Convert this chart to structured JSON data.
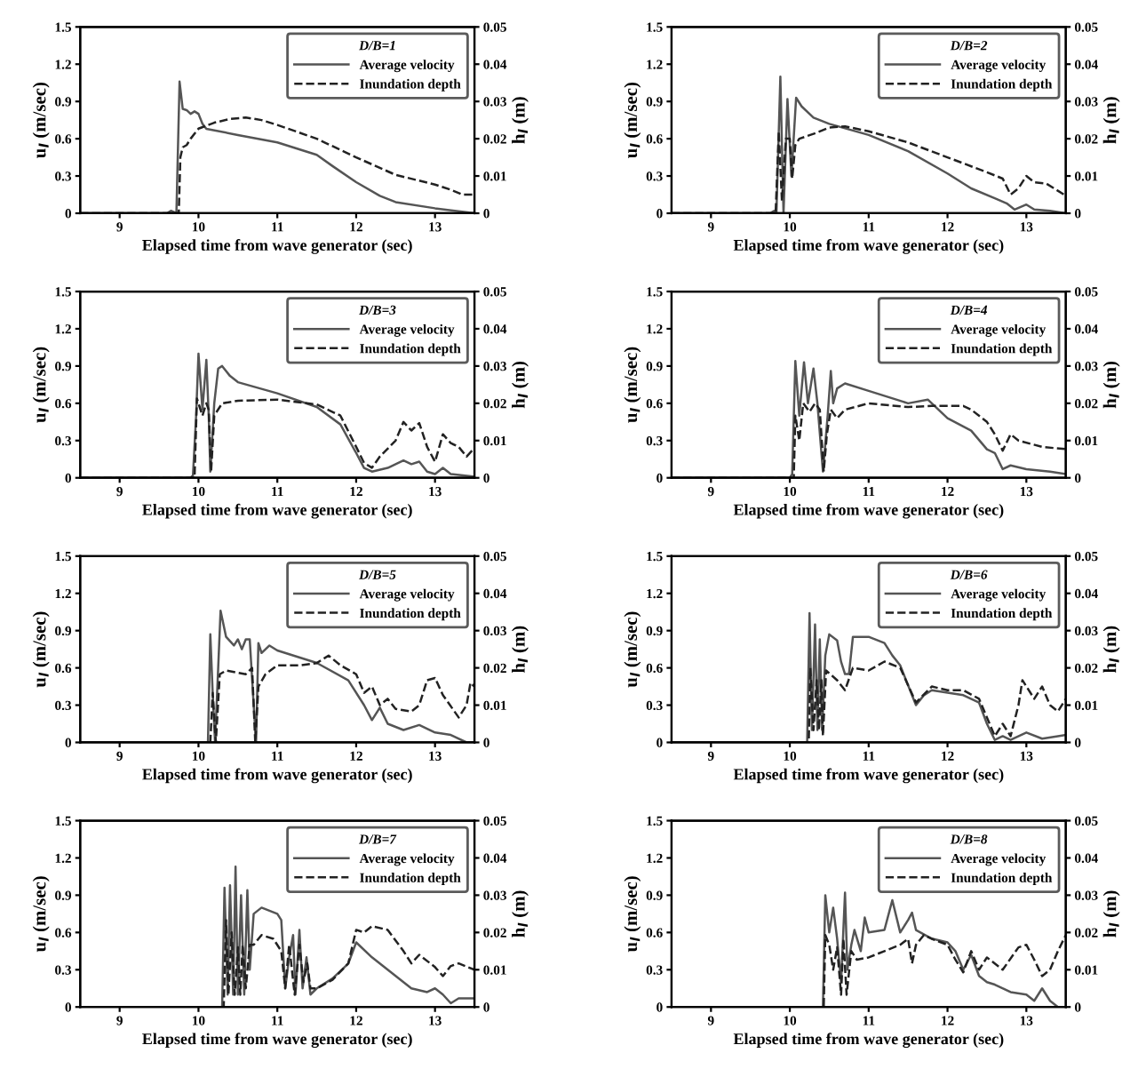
{
  "chart_data": [
    {
      "type": "line",
      "legend_title": "D/B=1",
      "xlabel": "Elapsed time from wave generator (sec)",
      "ylabel": "u$_{l}$ (m/sec)",
      "y2label": "h$_{l}$ (m)",
      "xlim": [
        8.5,
        13.5
      ],
      "xticks": [
        9,
        10,
        11,
        12,
        13
      ],
      "ylim": [
        0,
        1.5
      ],
      "yticks": [
        0,
        0.3,
        0.6,
        0.9,
        1.2,
        1.5
      ],
      "y2lim": [
        0,
        0.05
      ],
      "y2ticks": [
        0,
        0.01,
        0.02,
        0.03,
        0.04,
        0.05
      ],
      "legend": "top right",
      "grid": false,
      "series": [
        {
          "name": "Average velocity",
          "color": "#555555",
          "line_style": "solid",
          "x": [
            8.5,
            9.6,
            9.65,
            9.72,
            9.76,
            9.8,
            9.85,
            9.9,
            9.95,
            10.0,
            10.05,
            10.1,
            10.5,
            11.0,
            11.5,
            11.7,
            12.0,
            12.3,
            12.5,
            13.0,
            13.5
          ],
          "values": [
            0,
            0,
            0.02,
            0,
            1.06,
            0.84,
            0.83,
            0.8,
            0.82,
            0.8,
            0.72,
            0.68,
            0.63,
            0.57,
            0.47,
            0.38,
            0.25,
            0.14,
            0.09,
            0.04,
            0
          ]
        },
        {
          "name": "Inundation depth",
          "color": "#222222",
          "line_style": "dashed",
          "axis": "y2",
          "x": [
            8.5,
            9.75,
            9.77,
            9.8,
            9.85,
            9.9,
            10.0,
            10.2,
            10.4,
            10.6,
            10.8,
            11.0,
            11.5,
            12.0,
            12.5,
            13.0,
            13.2,
            13.35,
            13.5
          ],
          "values": [
            0,
            0,
            0.015,
            0.0177,
            0.0183,
            0.02,
            0.0227,
            0.0243,
            0.0253,
            0.0257,
            0.025,
            0.0237,
            0.02,
            0.015,
            0.0103,
            0.0077,
            0.0063,
            0.005,
            0.005
          ]
        }
      ]
    },
    {
      "type": "line",
      "legend_title": "D/B=2",
      "xlabel": "Elapsed time from wave generator (sec)",
      "ylabel": "u$_{l}$ (m/sec)",
      "y2label": "h$_{l}$ (m)",
      "xlim": [
        8.5,
        13.5
      ],
      "xticks": [
        9,
        10,
        11,
        12,
        13
      ],
      "ylim": [
        0,
        1.5
      ],
      "yticks": [
        0,
        0.3,
        0.6,
        0.9,
        1.2,
        1.5
      ],
      "y2lim": [
        0,
        0.05
      ],
      "y2ticks": [
        0,
        0.01,
        0.02,
        0.03,
        0.04,
        0.05
      ],
      "legend": "top right",
      "grid": false,
      "series": [
        {
          "name": "Average velocity",
          "color": "#555555",
          "line_style": "solid",
          "x": [
            8.5,
            9.75,
            9.8,
            9.83,
            9.88,
            9.92,
            9.97,
            10.02,
            10.08,
            10.15,
            10.3,
            10.5,
            11.0,
            11.5,
            12.0,
            12.3,
            12.6,
            12.75,
            12.85,
            13.0,
            13.1,
            13.3,
            13.5
          ],
          "values": [
            0,
            0,
            0.02,
            0,
            1.1,
            0,
            0.92,
            0.3,
            0.93,
            0.86,
            0.77,
            0.72,
            0.63,
            0.5,
            0.32,
            0.2,
            0.12,
            0.08,
            0.03,
            0.07,
            0.03,
            0.02,
            0
          ]
        },
        {
          "name": "Inundation depth",
          "color": "#222222",
          "line_style": "dashed",
          "axis": "y2",
          "x": [
            8.5,
            9.82,
            9.86,
            9.9,
            9.95,
            10.0,
            10.03,
            10.07,
            10.12,
            10.3,
            10.5,
            10.7,
            11.0,
            11.5,
            12.0,
            12.5,
            12.7,
            12.8,
            12.9,
            13.0,
            13.1,
            13.25,
            13.35,
            13.5
          ],
          "values": [
            0,
            0,
            0.022,
            0.0033,
            0.02,
            0.02,
            0.0093,
            0.0183,
            0.02,
            0.0213,
            0.023,
            0.0233,
            0.022,
            0.019,
            0.015,
            0.011,
            0.0093,
            0.005,
            0.0067,
            0.01,
            0.0083,
            0.008,
            0.0067,
            0.0047
          ]
        }
      ]
    },
    {
      "type": "line",
      "legend_title": "D/B=3",
      "xlabel": "Elapsed time from wave generator (sec)",
      "ylabel": "u$_{l}$ (m/sec)",
      "y2label": "h$_{l}$ (m)",
      "xlim": [
        8.5,
        13.5
      ],
      "xticks": [
        9,
        10,
        11,
        12,
        13
      ],
      "ylim": [
        0,
        1.5
      ],
      "yticks": [
        0,
        0.3,
        0.6,
        0.9,
        1.2,
        1.5
      ],
      "y2lim": [
        0,
        0.05
      ],
      "y2ticks": [
        0,
        0.01,
        0.02,
        0.03,
        0.04,
        0.05
      ],
      "legend": "top right",
      "grid": false,
      "series": [
        {
          "name": "Average velocity",
          "color": "#555555",
          "line_style": "solid",
          "x": [
            8.5,
            9.9,
            9.93,
            9.97,
            10.0,
            10.05,
            10.1,
            10.13,
            10.15,
            10.2,
            10.25,
            10.3,
            10.4,
            10.5,
            11.0,
            11.5,
            11.8,
            12.0,
            12.1,
            12.2,
            12.4,
            12.6,
            12.7,
            12.8,
            12.9,
            13.0,
            13.1,
            13.2,
            13.5
          ],
          "values": [
            0,
            0,
            0.02,
            0.5,
            1.0,
            0.55,
            0.95,
            0.5,
            0.05,
            0.6,
            0.88,
            0.9,
            0.82,
            0.77,
            0.68,
            0.57,
            0.43,
            0.2,
            0.08,
            0.05,
            0.08,
            0.14,
            0.11,
            0.13,
            0.05,
            0.03,
            0.08,
            0.03,
            0.01
          ]
        },
        {
          "name": "Inundation depth",
          "color": "#222222",
          "line_style": "dashed",
          "axis": "y2",
          "x": [
            8.5,
            9.95,
            9.98,
            10.05,
            10.1,
            10.13,
            10.16,
            10.2,
            10.3,
            10.5,
            11.0,
            11.5,
            11.8,
            12.0,
            12.1,
            12.2,
            12.3,
            12.5,
            12.6,
            12.7,
            12.8,
            12.9,
            13.0,
            13.1,
            13.2,
            13.3,
            13.4,
            13.5
          ],
          "values": [
            0,
            0,
            0.0213,
            0.0167,
            0.02,
            0.0183,
            0.0017,
            0.0167,
            0.02,
            0.0207,
            0.021,
            0.0197,
            0.0167,
            0.0083,
            0.004,
            0.0027,
            0.0057,
            0.01,
            0.015,
            0.0127,
            0.0147,
            0.0083,
            0.0043,
            0.0117,
            0.0093,
            0.0083,
            0.0057,
            0.008
          ]
        }
      ]
    },
    {
      "type": "line",
      "legend_title": "D/B=4",
      "xlabel": "Elapsed time from wave generator (sec)",
      "ylabel": "u$_{l}$ (m/sec)",
      "y2label": "h$_{l}$ (m)",
      "xlim": [
        8.5,
        13.5
      ],
      "xticks": [
        9,
        10,
        11,
        12,
        13
      ],
      "ylim": [
        0,
        1.5
      ],
      "yticks": [
        0,
        0.3,
        0.6,
        0.9,
        1.2,
        1.5
      ],
      "y2lim": [
        0,
        0.05
      ],
      "y2ticks": [
        0,
        0.01,
        0.02,
        0.03,
        0.04,
        0.05
      ],
      "legend": "top right",
      "grid": false,
      "series": [
        {
          "name": "Average velocity",
          "color": "#555555",
          "line_style": "solid",
          "x": [
            8.5,
            10.0,
            10.03,
            10.07,
            10.12,
            10.18,
            10.23,
            10.3,
            10.35,
            10.42,
            10.48,
            10.52,
            10.55,
            10.6,
            10.7,
            11.0,
            11.5,
            11.75,
            12.0,
            12.3,
            12.5,
            12.6,
            12.7,
            12.8,
            13.0,
            13.3,
            13.5
          ],
          "values": [
            0,
            0,
            0.03,
            0.94,
            0.5,
            0.93,
            0.6,
            0.88,
            0.6,
            0.05,
            0.5,
            0.86,
            0.6,
            0.72,
            0.76,
            0.7,
            0.6,
            0.63,
            0.48,
            0.38,
            0.23,
            0.2,
            0.07,
            0.1,
            0.07,
            0.05,
            0.03
          ]
        },
        {
          "name": "Inundation depth",
          "color": "#222222",
          "line_style": "dashed",
          "axis": "y2",
          "x": [
            8.5,
            10.05,
            10.07,
            10.12,
            10.17,
            10.25,
            10.32,
            10.38,
            10.43,
            10.47,
            10.52,
            10.6,
            10.7,
            11.0,
            11.5,
            11.8,
            12.2,
            12.3,
            12.5,
            12.6,
            12.7,
            12.8,
            12.9,
            13.2,
            13.5
          ],
          "values": [
            0,
            0,
            0.0167,
            0.01,
            0.02,
            0.0177,
            0.02,
            0.0183,
            0.0017,
            0.0117,
            0.0183,
            0.016,
            0.0183,
            0.02,
            0.019,
            0.0193,
            0.0193,
            0.0183,
            0.015,
            0.0117,
            0.0073,
            0.0117,
            0.01,
            0.0083,
            0.0077
          ]
        }
      ]
    },
    {
      "type": "line",
      "legend_title": "D/B=5",
      "xlabel": "Elapsed time from wave generator (sec)",
      "ylabel": "u$_{l}$ (m/sec)",
      "y2label": "h$_{l}$ (m)",
      "xlim": [
        8.5,
        13.5
      ],
      "xticks": [
        9,
        10,
        11,
        12,
        13
      ],
      "ylim": [
        0,
        1.5
      ],
      "yticks": [
        0,
        0.3,
        0.6,
        0.9,
        1.2,
        1.5
      ],
      "y2lim": [
        0,
        0.05
      ],
      "y2ticks": [
        0,
        0.01,
        0.02,
        0.03,
        0.04,
        0.05
      ],
      "legend": "top right",
      "grid": false,
      "series": [
        {
          "name": "Average velocity",
          "color": "#555555",
          "line_style": "solid",
          "x": [
            8.5,
            10.12,
            10.15,
            10.18,
            10.21,
            10.25,
            10.28,
            10.35,
            10.45,
            10.5,
            10.55,
            10.6,
            10.65,
            10.7,
            10.73,
            10.76,
            10.8,
            10.9,
            11.0,
            11.5,
            11.9,
            12.1,
            12.2,
            12.3,
            12.4,
            12.6,
            12.8,
            13.0,
            13.2,
            13.4,
            13.5
          ],
          "values": [
            0,
            0,
            0.87,
            0.4,
            0,
            0.6,
            1.06,
            0.85,
            0.78,
            0.83,
            0.75,
            0.83,
            0.83,
            0.3,
            0,
            0.8,
            0.72,
            0.78,
            0.74,
            0.64,
            0.5,
            0.3,
            0.18,
            0.28,
            0.15,
            0.1,
            0.14,
            0.08,
            0.06,
            0,
            0
          ]
        },
        {
          "name": "Inundation depth",
          "color": "#222222",
          "line_style": "dashed",
          "axis": "y2",
          "x": [
            8.5,
            10.15,
            10.18,
            10.22,
            10.27,
            10.35,
            10.5,
            10.6,
            10.68,
            10.72,
            10.76,
            10.85,
            11.0,
            11.3,
            11.5,
            11.65,
            11.8,
            12.0,
            12.1,
            12.2,
            12.3,
            12.4,
            12.5,
            12.7,
            12.8,
            12.9,
            13.0,
            13.1,
            13.3,
            13.4,
            13.45,
            13.5
          ],
          "values": [
            0,
            0,
            0.0133,
            0,
            0.0183,
            0.0193,
            0.0187,
            0.0183,
            0.02,
            0,
            0.015,
            0.0183,
            0.0207,
            0.0207,
            0.0213,
            0.0233,
            0.0207,
            0.0183,
            0.0133,
            0.015,
            0.01,
            0.0117,
            0.009,
            0.0083,
            0.01,
            0.0167,
            0.0173,
            0.0127,
            0.0067,
            0.01,
            0.016,
            0.015
          ]
        }
      ]
    },
    {
      "type": "line",
      "legend_title": "D/B=6",
      "xlabel": "Elapsed time from wave generator (sec)",
      "ylabel": "u$_{l}$ (m/sec)",
      "y2label": "h$_{l}$ (m)",
      "xlim": [
        8.5,
        13.5
      ],
      "xticks": [
        9,
        10,
        11,
        12,
        13
      ],
      "ylim": [
        0,
        1.5
      ],
      "yticks": [
        0,
        0.3,
        0.6,
        0.9,
        1.2,
        1.5
      ],
      "y2lim": [
        0,
        0.05
      ],
      "y2ticks": [
        0,
        0.01,
        0.02,
        0.03,
        0.04,
        0.05
      ],
      "legend": "top right",
      "grid": false,
      "series": [
        {
          "name": "Average velocity",
          "color": "#555555",
          "line_style": "solid",
          "x": [
            8.5,
            10.22,
            10.25,
            10.28,
            10.32,
            10.35,
            10.38,
            10.41,
            10.45,
            10.5,
            10.6,
            10.65,
            10.7,
            10.75,
            10.8,
            11.0,
            11.2,
            11.3,
            11.4,
            11.6,
            11.7,
            11.8,
            12.0,
            12.2,
            12.4,
            12.5,
            12.6,
            12.7,
            12.8,
            13.0,
            13.2,
            13.4,
            13.5
          ],
          "values": [
            0,
            0,
            1.04,
            0.1,
            0.95,
            0.1,
            0.83,
            0.1,
            0.7,
            0.87,
            0.82,
            0.65,
            0.55,
            0.55,
            0.85,
            0.85,
            0.8,
            0.7,
            0.62,
            0.3,
            0.38,
            0.42,
            0.4,
            0.38,
            0.32,
            0.15,
            0.02,
            0.05,
            0.02,
            0.08,
            0.03,
            0.05,
            0.06
          ]
        },
        {
          "name": "Inundation depth",
          "color": "#222222",
          "line_style": "dashed",
          "axis": "y2",
          "x": [
            8.5,
            10.24,
            10.26,
            10.3,
            10.34,
            10.37,
            10.4,
            10.42,
            10.46,
            10.6,
            10.7,
            10.8,
            11.0,
            11.2,
            11.4,
            11.6,
            11.8,
            12.0,
            12.2,
            12.4,
            12.5,
            12.6,
            12.7,
            12.8,
            12.9,
            12.95,
            13.1,
            13.2,
            13.3,
            13.4,
            13.5
          ],
          "values": [
            0,
            0,
            0.02,
            0.0033,
            0.0167,
            0.0033,
            0.0167,
            0.0017,
            0.0193,
            0.0167,
            0.014,
            0.02,
            0.0193,
            0.0217,
            0.02,
            0.0107,
            0.015,
            0.014,
            0.014,
            0.0117,
            0.0067,
            0.0017,
            0.005,
            0.0017,
            0.01,
            0.0167,
            0.0117,
            0.015,
            0.01,
            0.0083,
            0.0117
          ]
        }
      ]
    },
    {
      "type": "line",
      "legend_title": "D/B=7",
      "xlabel": "Elapsed time from wave generator (sec)",
      "ylabel": "u$_{l}$ (m/sec)",
      "y2label": "h$_{l}$ (m)",
      "xlim": [
        8.5,
        13.5
      ],
      "xticks": [
        9,
        10,
        11,
        12,
        13
      ],
      "ylim": [
        0,
        1.5
      ],
      "yticks": [
        0,
        0.3,
        0.6,
        0.9,
        1.2,
        1.5
      ],
      "y2lim": [
        0,
        0.05
      ],
      "y2ticks": [
        0,
        0.01,
        0.02,
        0.03,
        0.04,
        0.05
      ],
      "legend": "top right",
      "grid": false,
      "series": [
        {
          "name": "Average velocity",
          "color": "#555555",
          "line_style": "solid",
          "x": [
            8.5,
            10.3,
            10.33,
            10.37,
            10.4,
            10.44,
            10.47,
            10.5,
            10.54,
            10.58,
            10.62,
            10.65,
            10.7,
            10.8,
            11.0,
            11.05,
            11.1,
            11.15,
            11.2,
            11.23,
            11.28,
            11.32,
            11.37,
            11.42,
            11.5,
            11.7,
            11.9,
            12.0,
            12.2,
            12.5,
            12.7,
            12.9,
            13.0,
            13.1,
            13.2,
            13.3,
            13.5
          ],
          "values": [
            0,
            0,
            0.96,
            0.1,
            0.98,
            0.1,
            1.13,
            0.1,
            0.9,
            0.1,
            0.94,
            0.3,
            0.75,
            0.8,
            0.75,
            0.7,
            0.15,
            0.4,
            0.58,
            0.1,
            0.62,
            0.15,
            0.4,
            0.1,
            0.15,
            0.23,
            0.35,
            0.52,
            0.4,
            0.25,
            0.15,
            0.12,
            0.15,
            0.1,
            0.03,
            0.07,
            0.07
          ]
        },
        {
          "name": "Inundation depth",
          "color": "#222222",
          "line_style": "dashed",
          "axis": "y2",
          "x": [
            8.5,
            10.32,
            10.35,
            10.38,
            10.42,
            10.46,
            10.5,
            10.53,
            10.56,
            10.6,
            10.65,
            10.7,
            10.8,
            10.95,
            11.05,
            11.1,
            11.15,
            11.22,
            11.28,
            11.33,
            11.38,
            11.42,
            11.5,
            11.7,
            11.9,
            12.0,
            12.1,
            12.2,
            12.4,
            12.6,
            12.7,
            12.8,
            13.0,
            13.1,
            13.2,
            13.3,
            13.5
          ],
          "values": [
            0,
            0,
            0.0233,
            0.0033,
            0.02,
            0.0033,
            0.016,
            0.0033,
            0.0167,
            0.005,
            0.0167,
            0.0167,
            0.0193,
            0.0183,
            0.015,
            0.005,
            0.0167,
            0.0033,
            0.0167,
            0.0067,
            0.0117,
            0.005,
            0.005,
            0.0073,
            0.0117,
            0.0207,
            0.02,
            0.0217,
            0.0207,
            0.015,
            0.0117,
            0.014,
            0.0107,
            0.0083,
            0.011,
            0.0117,
            0.01
          ]
        }
      ]
    },
    {
      "type": "line",
      "legend_title": "D/B=8",
      "xlabel": "Elapsed time from wave generator (sec)",
      "ylabel": "u$_{l}$ (m/sec)",
      "y2label": "h$_{l}$ (m)",
      "xlim": [
        8.5,
        13.5
      ],
      "xticks": [
        9,
        10,
        11,
        12,
        13
      ],
      "ylim": [
        0,
        1.5
      ],
      "yticks": [
        0,
        0.3,
        0.6,
        0.9,
        1.2,
        1.5
      ],
      "y2lim": [
        0,
        0.05
      ],
      "y2ticks": [
        0,
        0.01,
        0.02,
        0.03,
        0.04,
        0.05
      ],
      "legend": "top right",
      "grid": false,
      "series": [
        {
          "name": "Average velocity",
          "color": "#555555",
          "line_style": "solid",
          "x": [
            8.5,
            10.42,
            10.45,
            10.5,
            10.55,
            10.6,
            10.65,
            10.7,
            10.73,
            10.78,
            10.82,
            10.9,
            10.95,
            11.0,
            11.2,
            11.3,
            11.4,
            11.5,
            11.55,
            11.6,
            11.8,
            12.0,
            12.1,
            12.2,
            12.3,
            12.4,
            12.5,
            12.6,
            12.8,
            13.0,
            13.1,
            13.2,
            13.3,
            13.4,
            13.5
          ],
          "values": [
            0,
            0,
            0.9,
            0.6,
            0.8,
            0.55,
            0.2,
            0.92,
            0.3,
            0.5,
            0.62,
            0.45,
            0.72,
            0.6,
            0.62,
            0.86,
            0.6,
            0.7,
            0.76,
            0.62,
            0.55,
            0.52,
            0.45,
            0.3,
            0.42,
            0.25,
            0.2,
            0.18,
            0.12,
            0.1,
            0.05,
            0.15,
            0.05,
            0,
            0
          ]
        },
        {
          "name": "Inundation depth",
          "color": "#222222",
          "line_style": "dashed",
          "axis": "y2",
          "x": [
            8.5,
            10.43,
            10.45,
            10.5,
            10.55,
            10.6,
            10.65,
            10.68,
            10.72,
            10.78,
            10.85,
            11.0,
            11.2,
            11.4,
            11.5,
            11.55,
            11.6,
            11.7,
            11.8,
            12.0,
            12.1,
            12.2,
            12.3,
            12.4,
            12.5,
            12.7,
            12.9,
            13.0,
            13.1,
            13.2,
            13.3,
            13.4,
            13.5
          ],
          "values": [
            0,
            0,
            0.0193,
            0.0167,
            0.01,
            0.016,
            0.0033,
            0.0183,
            0.0033,
            0.015,
            0.0127,
            0.0133,
            0.015,
            0.0167,
            0.0183,
            0.0117,
            0.0167,
            0.0193,
            0.0183,
            0.0167,
            0.0127,
            0.0093,
            0.015,
            0.01,
            0.0133,
            0.01,
            0.016,
            0.0167,
            0.0127,
            0.0083,
            0.01,
            0.015,
            0.0193
          ]
        }
      ]
    }
  ]
}
